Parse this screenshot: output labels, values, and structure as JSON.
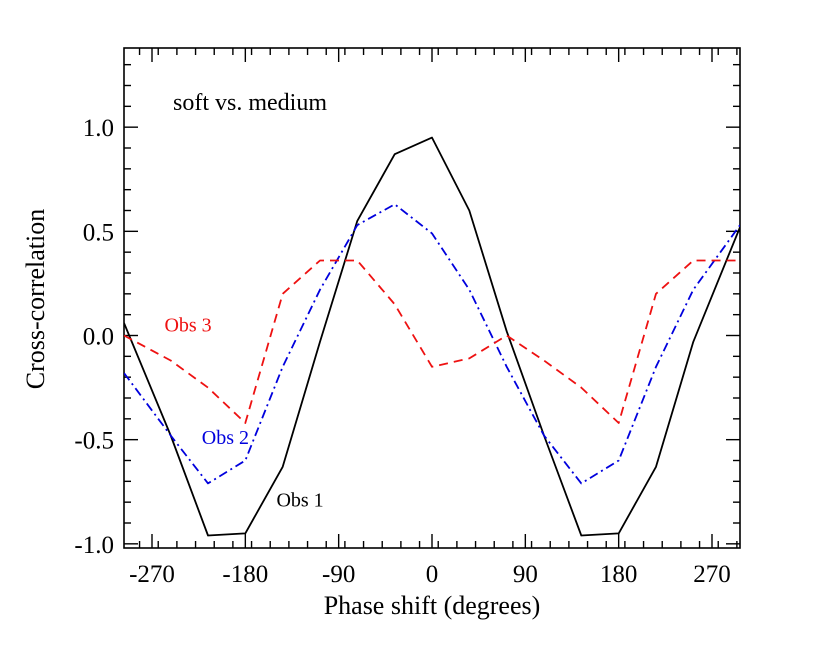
{
  "chart_data": {
    "type": "line",
    "title": "",
    "annotation": "soft vs. medium",
    "xlabel": "Phase shift (degrees)",
    "ylabel": "Cross-correlation",
    "xlim": [
      -297,
      297
    ],
    "ylim": [
      -1.02,
      1.38
    ],
    "xticks": [
      -270,
      -180,
      -90,
      0,
      90,
      180,
      270
    ],
    "yticks": [
      -1.0,
      -0.5,
      0.0,
      0.5,
      1.0
    ],
    "xtick_labels": [
      "-270",
      "-180",
      "-90",
      "0",
      "90",
      "180",
      "270"
    ],
    "ytick_labels": [
      "-1.0",
      "-0.5",
      "0.0",
      "0.5",
      "1.0"
    ],
    "grid": false,
    "series": [
      {
        "name": "Obs 1",
        "color": "#000000",
        "style": "solid",
        "x": [
          -297,
          -252,
          -216,
          -180,
          -144,
          -108,
          -72,
          -36,
          0,
          36,
          72,
          108,
          144,
          180,
          216,
          252,
          297
        ],
        "y": [
          0.06,
          -0.48,
          -0.96,
          -0.95,
          -0.63,
          -0.03,
          0.55,
          0.87,
          0.95,
          0.6,
          0.02,
          -0.48,
          -0.96,
          -0.95,
          -0.63,
          -0.03,
          0.52
        ]
      },
      {
        "name": "Obs 2",
        "color": "#0000dd",
        "style": "dashdot",
        "x": [
          -297,
          -252,
          -216,
          -180,
          -144,
          -108,
          -72,
          -36,
          0,
          36,
          72,
          108,
          144,
          180,
          216,
          252,
          297
        ],
        "y": [
          -0.18,
          -0.48,
          -0.71,
          -0.6,
          -0.15,
          0.22,
          0.53,
          0.63,
          0.49,
          0.22,
          -0.15,
          -0.48,
          -0.71,
          -0.6,
          -0.15,
          0.22,
          0.53
        ]
      },
      {
        "name": "Obs 3",
        "color": "#ee1111",
        "style": "dashed",
        "x": [
          -297,
          -252,
          -216,
          -180,
          -144,
          -108,
          -72,
          -36,
          0,
          36,
          72,
          108,
          144,
          180,
          216,
          252,
          297
        ],
        "y": [
          0.0,
          -0.12,
          -0.25,
          -0.42,
          0.2,
          0.36,
          0.36,
          0.15,
          -0.15,
          -0.11,
          0.0,
          -0.12,
          -0.25,
          -0.42,
          0.2,
          0.36,
          0.36
        ]
      }
    ],
    "legend": [
      {
        "text": "Obs 3",
        "color": "#ee1111",
        "x": -258,
        "y": 0.02
      },
      {
        "text": "Obs 2",
        "color": "#0000dd",
        "x": -222,
        "y": -0.52
      },
      {
        "text": "Obs 1",
        "color": "#000000",
        "x": -150,
        "y": -0.82
      }
    ]
  }
}
